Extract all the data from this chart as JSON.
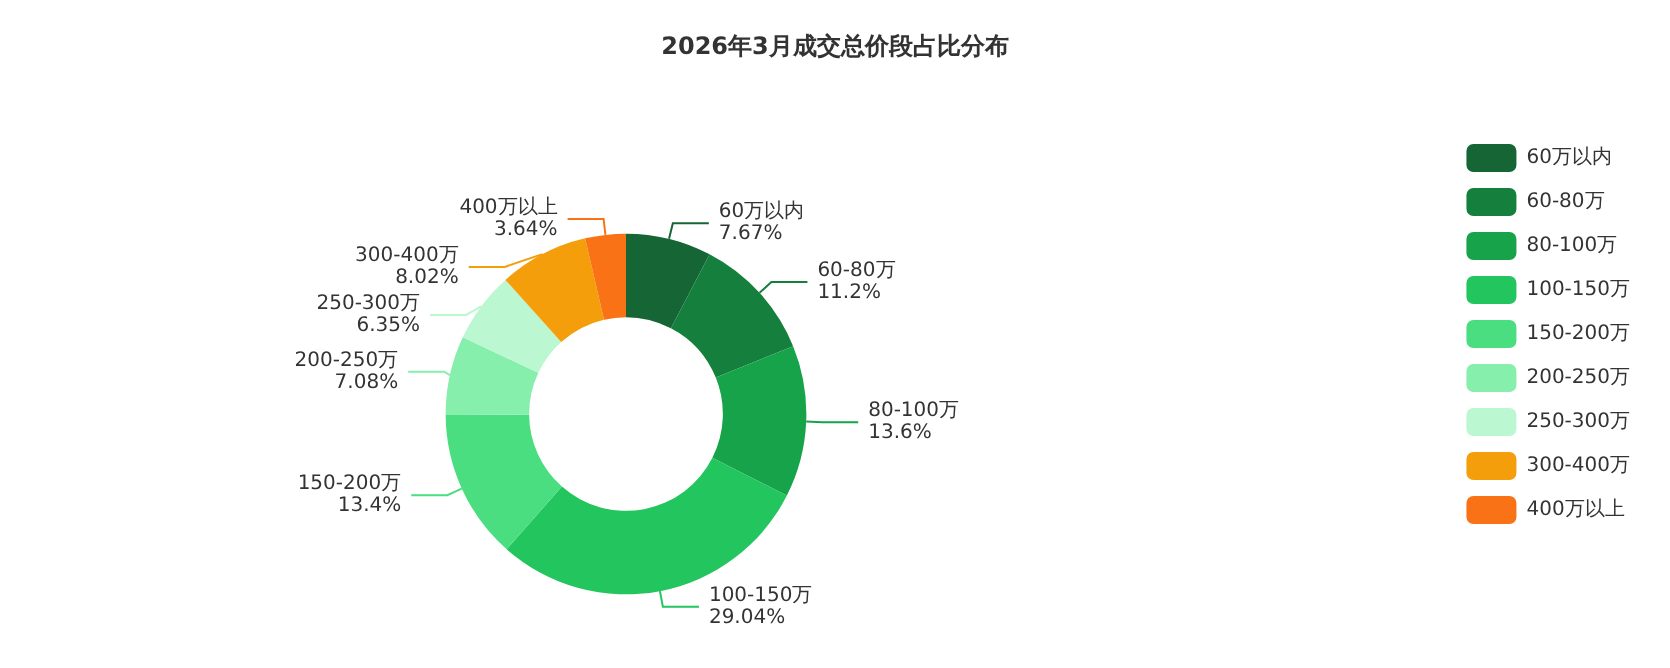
{
  "chart_data": {
    "type": "donut",
    "title": "2026年3月成交总价段占比分布",
    "categories": [
      "60万以内",
      "60-80万",
      "80-100万",
      "100-150万",
      "150-200万",
      "200-250万",
      "250-300万",
      "300-400万",
      "400万以上"
    ],
    "values": [
      7.67,
      11.2,
      13.6,
      29.04,
      13.4,
      7.08,
      6.35,
      8.02,
      3.64
    ],
    "colors": [
      "#166534",
      "#15803d",
      "#16a34a",
      "#22c55e",
      "#4ade80",
      "#86efac",
      "#bbf7d0",
      "#f59e0b",
      "#f97316"
    ],
    "value_labels": [
      "7.67%",
      "11.2%",
      "13.6%",
      "29.04%",
      "13.4%",
      "7.08%",
      "6.35%",
      "8.02%",
      "3.64%"
    ],
    "legend": "right"
  }
}
